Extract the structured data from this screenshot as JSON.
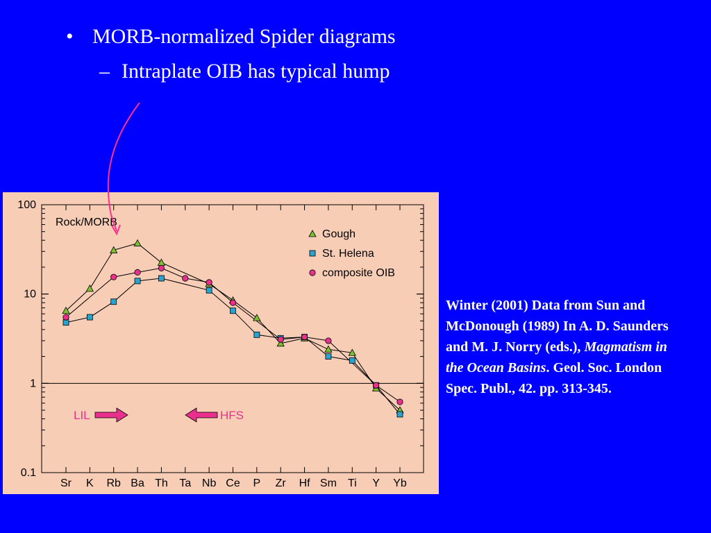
{
  "slide": {
    "bullet1_marker": "•",
    "bullet1": "MORB-normalized Spider diagrams",
    "bullet2_marker": "–",
    "bullet2": "Intraplate OIB has typical hump",
    "citation": {
      "part1": "Winter (2001) Data from Sun and McDonough (1989) In A. D. Saunders and M. J. Norry (eds.), ",
      "italic": "Magmatism in the Ocean Basins",
      "part2": ". Geol. Soc. London Spec. Publ., 42. pp. 313-345."
    },
    "arrow_color": "#ff2f8c"
  },
  "colors": {
    "background": "#0000ff",
    "chart_background": "#f8cdb6",
    "gough": "#7cc230",
    "st_helena": "#29a3cf",
    "oib": "#e8308c",
    "lil_hfs": "#e8308c"
  },
  "chart_data": {
    "type": "line",
    "ylabel": "Rock/MORB",
    "yscale": "log",
    "ylim": [
      0.1,
      100
    ],
    "yticks": [
      100,
      10,
      1,
      0.1
    ],
    "ytick_labels": [
      "100",
      "10",
      "1",
      "0.1"
    ],
    "reference_line": 1,
    "categories": [
      "Sr",
      "K",
      "Rb",
      "Ba",
      "Th",
      "Ta",
      "Nb",
      "Ce",
      "P",
      "Zr",
      "Hf",
      "Sm",
      "Ti",
      "Y",
      "Yb"
    ],
    "legend_placement": "top-right",
    "series": [
      {
        "name": "Gough",
        "marker": "triangle",
        "points": [
          [
            "Sr",
            6.5
          ],
          [
            "K",
            11.5
          ],
          [
            "Rb",
            31
          ],
          [
            "Ba",
            37
          ],
          [
            "Th",
            22.5
          ],
          [
            "Nb",
            13
          ],
          [
            "Ce",
            8.5
          ],
          [
            "P",
            5.4
          ],
          [
            "Zr",
            2.8
          ],
          [
            "Hf",
            3.2
          ],
          [
            "Sm",
            2.4
          ],
          [
            "Ti",
            2.2
          ],
          [
            "Y",
            0.88
          ],
          [
            "Yb",
            0.5
          ]
        ]
      },
      {
        "name": "St. Helena",
        "marker": "square",
        "points": [
          [
            "Sr",
            4.8
          ],
          [
            "K",
            5.5
          ],
          [
            "Rb",
            8.2
          ],
          [
            "Ba",
            14
          ],
          [
            "Th",
            15
          ],
          [
            "Nb",
            11
          ],
          [
            "Ce",
            6.5
          ],
          [
            "P",
            3.5
          ],
          [
            "Zr",
            3.2
          ],
          [
            "Hf",
            3.3
          ],
          [
            "Sm",
            2
          ],
          [
            "Ti",
            1.8
          ],
          [
            "Y",
            0.95
          ],
          [
            "Yb",
            0.45
          ]
        ]
      },
      {
        "name": "composite OIB",
        "marker": "circle",
        "points": [
          [
            "Sr",
            5.5
          ],
          [
            "Rb",
            15.5
          ],
          [
            "Ba",
            17.5
          ],
          [
            "Th",
            19.5
          ],
          [
            "Ta",
            15
          ],
          [
            "Nb",
            13.5
          ],
          [
            "Ce",
            8
          ],
          [
            "Zr",
            3.1
          ],
          [
            "Hf",
            3.3
          ],
          [
            "Sm",
            3
          ],
          [
            "Y",
            0.95
          ],
          [
            "Yb",
            0.62
          ]
        ]
      }
    ],
    "annotations": [
      {
        "text": "LIL",
        "direction": "right"
      },
      {
        "text": "HFS",
        "direction": "left"
      }
    ]
  }
}
